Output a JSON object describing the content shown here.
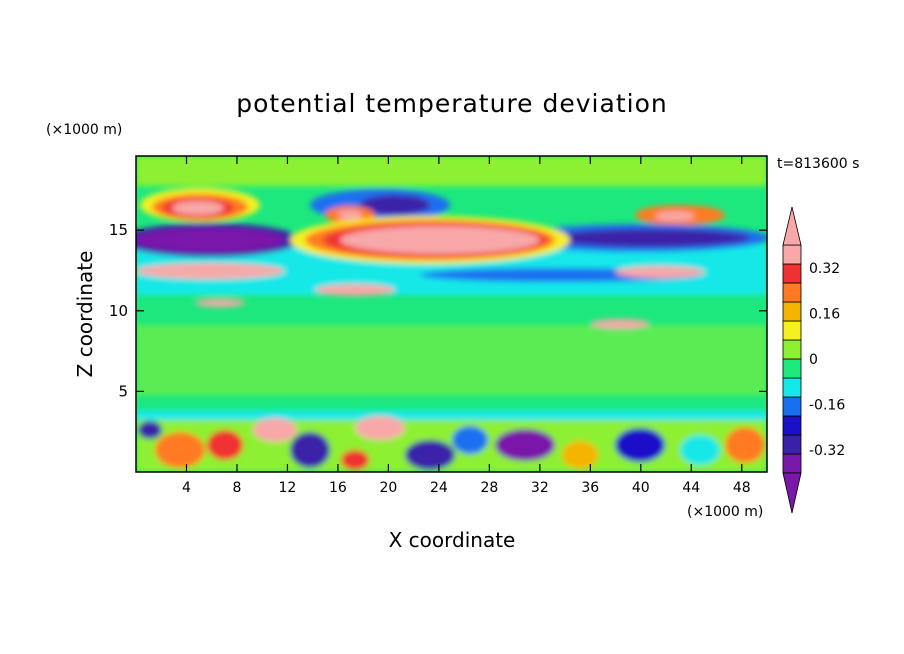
{
  "chart_data": {
    "type": "heatmap",
    "title": "potential temperature deviation",
    "xlabel": "X coordinate",
    "ylabel": "Z coordinate",
    "x_unit": "(×1000 m)",
    "y_unit": "(×1000 m)",
    "time_label": "t=813600 s",
    "xlim": [
      0,
      50
    ],
    "ylim": [
      0,
      19.6
    ],
    "x_ticks": [
      4,
      8,
      12,
      16,
      20,
      24,
      28,
      32,
      36,
      40,
      44,
      48
    ],
    "y_ticks": [
      5,
      10,
      15
    ],
    "colorbar": {
      "levels": [
        -0.4,
        -0.32,
        -0.24,
        -0.16,
        -0.08,
        0,
        0.08,
        0.16,
        0.24,
        0.32,
        0.4
      ],
      "tick_labels": [
        "0.32",
        "0.16",
        "0",
        "-0.16",
        "-0.32"
      ],
      "tick_values": [
        0.32,
        0.16,
        0,
        -0.16,
        -0.32
      ],
      "colors_bottom_to_top": [
        "#7a18aa",
        "#3a20a8",
        "#1a10c8",
        "#1a6ff0",
        "#15e8e8",
        "#1ce87e",
        "#8ef030",
        "#f5f020",
        "#f5b400",
        "#ff7a20",
        "#f03030",
        "#f8a8a8"
      ],
      "extend": "both"
    },
    "features": [
      {
        "x": [
          2.0,
          8.0
        ],
        "z": [
          13.6,
          15.8
        ],
        "value": -0.4
      },
      {
        "x": [
          2.5,
          7.0
        ],
        "z": [
          16.4,
          17.8
        ],
        "value": 0.45
      },
      {
        "x": [
          17.0,
          30.0
        ],
        "z": [
          13.6,
          15.8
        ],
        "value": 0.45
      },
      {
        "x": [
          1.0,
          10.0
        ],
        "z": [
          11.8,
          12.9
        ],
        "value": 0.45
      },
      {
        "x": [
          20.0,
          30.0
        ],
        "z": [
          16.5,
          17.8
        ],
        "value": -0.3
      },
      {
        "x": [
          33.0,
          49.0
        ],
        "z": [
          13.8,
          15.3
        ],
        "value": -0.35
      },
      {
        "x": [
          38.0,
          46.0
        ],
        "z": [
          11.7,
          12.9
        ],
        "value": 0.3
      },
      {
        "x": [
          22.0,
          30.0
        ],
        "z": [
          10.7,
          11.9
        ],
        "value": 0.3
      },
      {
        "x": [
          38.0,
          42.0
        ],
        "z": [
          8.6,
          9.6
        ],
        "value": 0.3
      },
      {
        "x": [
          0.0,
          50.0
        ],
        "z": [
          0.0,
          3.6
        ],
        "value": 0.0
      }
    ]
  }
}
